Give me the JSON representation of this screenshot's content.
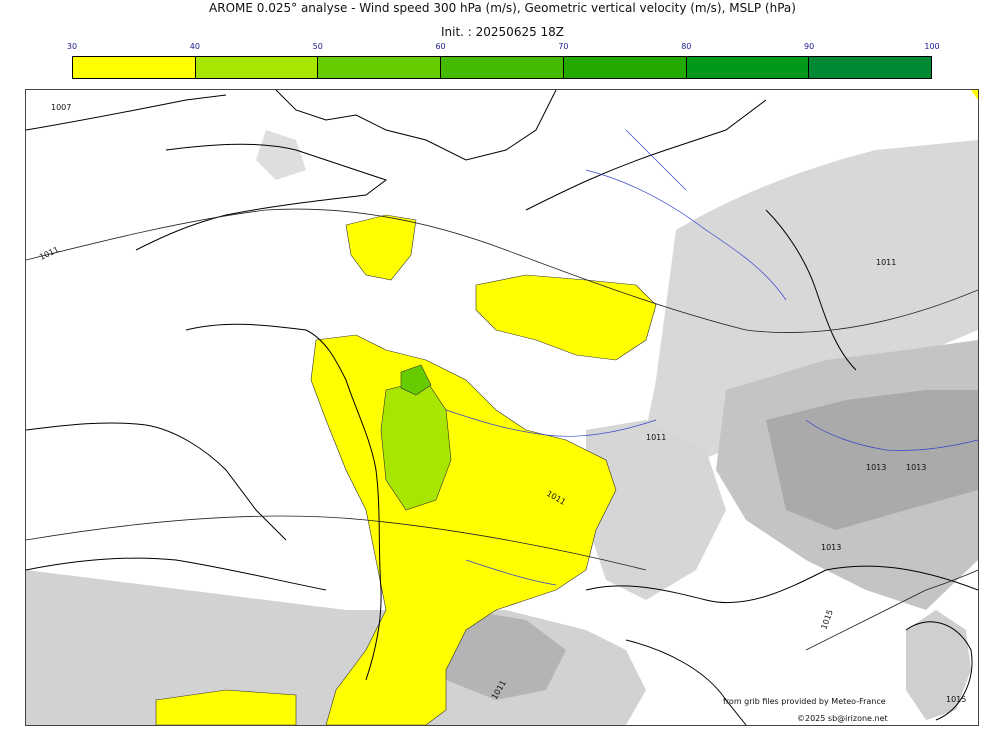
{
  "header": {
    "title": "AROME 0.025° analyse - Wind speed 300 hPa (m/s), Geometric vertical velocity (m/s), MSLP (hPa)",
    "init": "Init. : 20250625 18Z"
  },
  "colorbar": {
    "ticks": [
      "30",
      "40",
      "50",
      "60",
      "70",
      "80",
      "90",
      "100"
    ],
    "colors": [
      "#ffff00",
      "#a8e600",
      "#66cc00",
      "#44bb00",
      "#22aa00",
      "#00991a",
      "#008833",
      "#007744"
    ]
  },
  "map": {
    "isobar_labels": [
      "1007",
      "1011",
      "1011",
      "1011",
      "1013",
      "1013",
      "1013",
      "1015",
      "1015",
      "1011",
      "1011"
    ],
    "colors": {
      "jet_yellow": "#ffff00",
      "jet_green_light": "#a8e600",
      "jet_green": "#66cc00",
      "terrain_gray": "#d0d0d0",
      "terrain_dark": "#b0b0b0",
      "rivers": "#3344cc",
      "coast": "#000000"
    }
  },
  "credits": {
    "source": "from grib files provided by Meteo-France",
    "copyright": "©2025 sb@irizone.net"
  }
}
